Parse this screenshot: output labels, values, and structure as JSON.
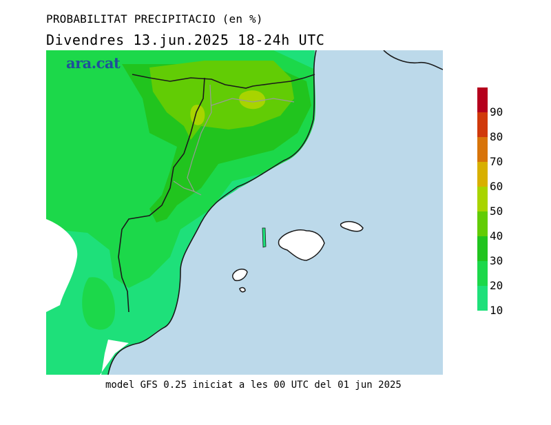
{
  "header": {
    "title": "PROBABILITAT PRECIPITACIO (en %)",
    "subtitle": "Divendres  13.jun.2025 18-24h UTC"
  },
  "map": {
    "logo": "ara.cat",
    "colors": {
      "sea": "#bcd9ea",
      "coast": "#1a1a1a",
      "border": "#9a9a9a"
    }
  },
  "legend": {
    "labels": [
      "90",
      "80",
      "70",
      "60",
      "50",
      "40",
      "30",
      "20",
      "10"
    ],
    "colors": [
      "#b5001c",
      "#d0390b",
      "#d8740a",
      "#d8b000",
      "#a8d400",
      "#62cc05",
      "#21c41e",
      "#1cd84a",
      "#1ee07a"
    ]
  },
  "footer": {
    "text": "model GFS 0.25 iniciat a les 00 UTC del 01 jun 2025"
  }
}
